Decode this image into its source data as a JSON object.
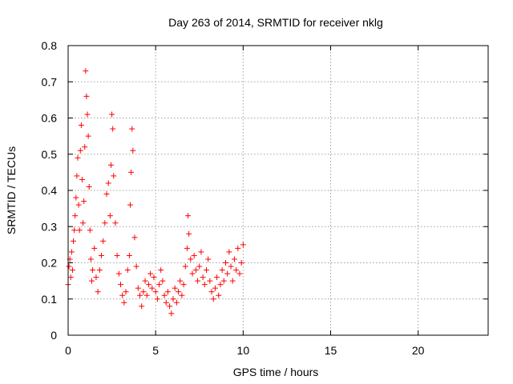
{
  "chart_data": {
    "type": "scatter",
    "title": "Day 263 of 2014, SRMTID for receiver nklg",
    "xlabel": "GPS time / hours",
    "ylabel": "SRMTID / TECUs",
    "xlim": [
      0,
      24
    ],
    "ylim": [
      0,
      0.8
    ],
    "xticks": [
      0,
      5,
      10,
      15,
      20
    ],
    "xtick_labels": [
      "0",
      "5",
      "10",
      "15",
      "20"
    ],
    "yticks": [
      0,
      0.1,
      0.2,
      0.3,
      0.4,
      0.5,
      0.6,
      0.7,
      0.8
    ],
    "ytick_labels": [
      "0",
      "0.1",
      "0.2",
      "0.3",
      "0.4",
      "0.5",
      "0.6",
      "0.7",
      "0.8"
    ],
    "grid": true,
    "marker": "+",
    "color": "#ff0000",
    "series": [
      {
        "name": "SRMTID",
        "x": [
          0.0,
          0.05,
          0.1,
          0.15,
          0.2,
          0.25,
          0.3,
          0.35,
          0.4,
          0.45,
          0.5,
          0.55,
          0.6,
          0.65,
          0.7,
          0.75,
          0.8,
          0.85,
          0.9,
          0.95,
          1.0,
          1.05,
          1.1,
          1.15,
          1.2,
          1.25,
          1.3,
          1.35,
          1.4,
          1.5,
          1.6,
          1.7,
          1.8,
          1.9,
          2.0,
          2.1,
          2.2,
          2.3,
          2.4,
          2.45,
          2.5,
          2.55,
          2.6,
          2.7,
          2.8,
          2.9,
          3.0,
          3.1,
          3.2,
          3.3,
          3.4,
          3.5,
          3.55,
          3.6,
          3.65,
          3.7,
          3.8,
          3.9,
          4.0,
          4.1,
          4.2,
          4.3,
          4.4,
          4.5,
          4.6,
          4.7,
          4.8,
          4.9,
          5.0,
          5.1,
          5.2,
          5.3,
          5.4,
          5.5,
          5.6,
          5.7,
          5.8,
          5.9,
          6.0,
          6.1,
          6.2,
          6.3,
          6.4,
          6.5,
          6.6,
          6.7,
          6.8,
          6.85,
          6.9,
          7.0,
          7.1,
          7.2,
          7.3,
          7.4,
          7.5,
          7.6,
          7.7,
          7.8,
          7.9,
          8.0,
          8.1,
          8.2,
          8.3,
          8.4,
          8.5,
          8.6,
          8.7,
          8.8,
          8.9,
          9.0,
          9.1,
          9.2,
          9.3,
          9.4,
          9.5,
          9.6,
          9.7,
          9.8,
          9.9,
          10.0
        ],
        "values": [
          0.14,
          0.19,
          0.21,
          0.16,
          0.23,
          0.18,
          0.26,
          0.29,
          0.33,
          0.38,
          0.44,
          0.49,
          0.36,
          0.29,
          0.51,
          0.58,
          0.43,
          0.31,
          0.37,
          0.52,
          0.73,
          0.66,
          0.61,
          0.55,
          0.41,
          0.29,
          0.21,
          0.15,
          0.18,
          0.24,
          0.16,
          0.12,
          0.18,
          0.22,
          0.26,
          0.31,
          0.39,
          0.42,
          0.33,
          0.47,
          0.61,
          0.57,
          0.44,
          0.31,
          0.22,
          0.17,
          0.14,
          0.11,
          0.09,
          0.12,
          0.18,
          0.22,
          0.36,
          0.45,
          0.57,
          0.51,
          0.27,
          0.19,
          0.13,
          0.11,
          0.08,
          0.12,
          0.15,
          0.11,
          0.14,
          0.17,
          0.13,
          0.16,
          0.12,
          0.1,
          0.14,
          0.18,
          0.15,
          0.11,
          0.09,
          0.12,
          0.08,
          0.06,
          0.1,
          0.13,
          0.09,
          0.12,
          0.15,
          0.11,
          0.14,
          0.19,
          0.24,
          0.33,
          0.28,
          0.21,
          0.17,
          0.22,
          0.18,
          0.15,
          0.19,
          0.23,
          0.16,
          0.14,
          0.18,
          0.21,
          0.15,
          0.12,
          0.1,
          0.13,
          0.16,
          0.11,
          0.14,
          0.18,
          0.15,
          0.2,
          0.17,
          0.23,
          0.19,
          0.15,
          0.21,
          0.18,
          0.24,
          0.17,
          0.2,
          0.25
        ]
      }
    ]
  }
}
